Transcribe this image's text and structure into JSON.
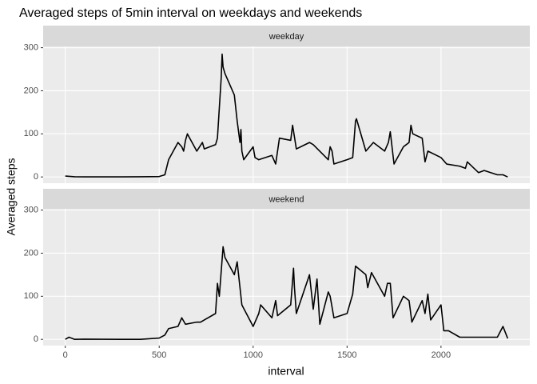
{
  "chart_data": {
    "type": "line",
    "title": "Averaged steps of 5min interval on weekdays and weekends",
    "xlabel": "interval",
    "ylabel": "Averaged steps",
    "xlim": [
      -117.75,
      2472.75
    ],
    "xticks": [
      0,
      500,
      1000,
      1500,
      2000
    ],
    "ylim": [
      -14.5,
      303
    ],
    "yticks": [
      0,
      100,
      200,
      300
    ],
    "grid": true,
    "series": [
      {
        "name": "weekday",
        "color": "#000000",
        "x": [
          0,
          50,
          100,
          200,
          300,
          400,
          500,
          530,
          550,
          600,
          620,
          630,
          640,
          650,
          700,
          730,
          740,
          800,
          810,
          830,
          835,
          840,
          850,
          900,
          915,
          930,
          935,
          940,
          950,
          1000,
          1010,
          1030,
          1100,
          1120,
          1130,
          1140,
          1200,
          1210,
          1230,
          1300,
          1320,
          1400,
          1410,
          1420,
          1430,
          1500,
          1530,
          1545,
          1550,
          1600,
          1640,
          1700,
          1720,
          1730,
          1750,
          1800,
          1830,
          1840,
          1845,
          1850,
          1900,
          1915,
          1930,
          2000,
          2030,
          2100,
          2130,
          2140,
          2200,
          2230,
          2300,
          2330,
          2355
        ],
        "values": [
          2,
          0.5,
          0.3,
          0.2,
          0.3,
          0.5,
          1,
          5,
          40,
          80,
          70,
          60,
          85,
          100,
          60,
          80,
          65,
          75,
          90,
          230,
          285,
          255,
          240,
          190,
          130,
          80,
          110,
          60,
          40,
          70,
          45,
          40,
          50,
          30,
          60,
          90,
          85,
          120,
          65,
          80,
          75,
          40,
          70,
          60,
          30,
          40,
          45,
          130,
          135,
          60,
          80,
          60,
          80,
          105,
          30,
          70,
          80,
          120,
          110,
          100,
          90,
          35,
          60,
          45,
          30,
          25,
          20,
          35,
          10,
          15,
          5,
          5,
          0
        ]
      },
      {
        "name": "weekend",
        "color": "#000000",
        "x": [
          0,
          20,
          50,
          100,
          300,
          400,
          500,
          530,
          550,
          600,
          620,
          640,
          700,
          720,
          740,
          800,
          810,
          820,
          840,
          850,
          900,
          915,
          930,
          940,
          1000,
          1030,
          1040,
          1100,
          1120,
          1130,
          1200,
          1215,
          1220,
          1230,
          1300,
          1320,
          1340,
          1355,
          1400,
          1410,
          1430,
          1500,
          1530,
          1545,
          1600,
          1610,
          1630,
          1700,
          1715,
          1730,
          1745,
          1800,
          1830,
          1845,
          1900,
          1915,
          1930,
          1945,
          2000,
          2015,
          2040,
          2100,
          2200,
          2300,
          2330,
          2355
        ],
        "values": [
          0,
          5,
          0,
          0.5,
          0,
          0,
          3,
          10,
          25,
          30,
          50,
          35,
          40,
          40,
          45,
          60,
          130,
          100,
          215,
          190,
          150,
          180,
          120,
          80,
          30,
          60,
          80,
          50,
          90,
          55,
          80,
          165,
          120,
          60,
          150,
          70,
          140,
          35,
          110,
          100,
          50,
          60,
          105,
          170,
          150,
          120,
          155,
          100,
          130,
          130,
          50,
          100,
          90,
          40,
          90,
          60,
          105,
          45,
          80,
          20,
          20,
          5,
          5,
          5,
          30,
          2
        ]
      }
    ]
  }
}
